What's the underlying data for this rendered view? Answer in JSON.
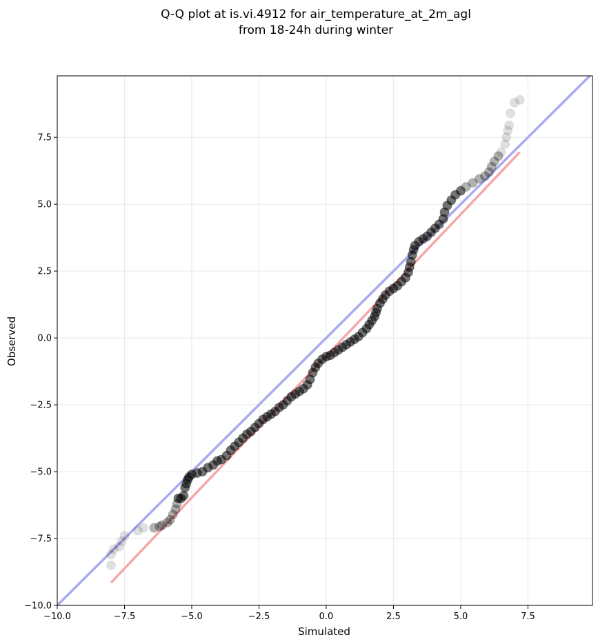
{
  "chart_data": {
    "type": "scatter",
    "title_lines": [
      "Q-Q plot at is.vi.4912 for air_temperature_at_2m_agl",
      "from 18-24h during winter"
    ],
    "xlabel": "Simulated",
    "ylabel": "Observed",
    "xlim": [
      -10.0,
      9.9
    ],
    "ylim": [
      -10.0,
      9.8
    ],
    "x_ticks": [
      -10.0,
      -7.5,
      -5.0,
      -2.5,
      0.0,
      2.5,
      5.0,
      7.5
    ],
    "y_ticks": [
      -10.0,
      -7.5,
      -5.0,
      -2.5,
      0.0,
      2.5,
      5.0,
      7.5
    ],
    "x_tick_labels": [
      "−10.0",
      "−7.5",
      "−5.0",
      "−2.5",
      "0.0",
      "2.5",
      "5.0",
      "7.5"
    ],
    "y_tick_labels": [
      "−10.0",
      "−7.5",
      "−5.0",
      "−2.5",
      "0.0",
      "2.5",
      "5.0",
      "7.5"
    ],
    "grid": true,
    "reference_line": {
      "x": [
        -10.0,
        9.9
      ],
      "y": [
        -10.0,
        9.9
      ],
      "color": "#aaaaf0"
    },
    "fit_line": {
      "x": [
        -8.0,
        7.2
      ],
      "y": [
        -9.15,
        6.95
      ],
      "color": "#f4a7a7"
    },
    "series": [
      {
        "point_color": "#000000",
        "points": [
          [
            -8.0,
            -8.5
          ],
          [
            -8.0,
            -8.1
          ],
          [
            -7.9,
            -7.9
          ],
          [
            -7.7,
            -7.8
          ],
          [
            -7.6,
            -7.6
          ],
          [
            -7.5,
            -7.4
          ],
          [
            -7.0,
            -7.2
          ],
          [
            -6.8,
            -7.1
          ],
          [
            -6.4,
            -7.1
          ],
          [
            -6.2,
            -7.05
          ],
          [
            -6.1,
            -7.0
          ],
          [
            -5.9,
            -6.9
          ],
          [
            -5.8,
            -6.8
          ],
          [
            -5.7,
            -6.6
          ],
          [
            -5.6,
            -6.4
          ],
          [
            -5.55,
            -6.2
          ],
          [
            -5.5,
            -6.0
          ],
          [
            -5.4,
            -6.0
          ],
          [
            -5.3,
            -5.9
          ],
          [
            -5.25,
            -5.6
          ],
          [
            -5.2,
            -5.45
          ],
          [
            -5.15,
            -5.3
          ],
          [
            -5.1,
            -5.2
          ],
          [
            -5.0,
            -5.1
          ],
          [
            -4.8,
            -5.05
          ],
          [
            -4.6,
            -5.0
          ],
          [
            -4.4,
            -4.85
          ],
          [
            -4.2,
            -4.75
          ],
          [
            -4.05,
            -4.6
          ],
          [
            -3.9,
            -4.55
          ],
          [
            -3.7,
            -4.4
          ],
          [
            -3.55,
            -4.2
          ],
          [
            -3.4,
            -4.05
          ],
          [
            -3.25,
            -3.9
          ],
          [
            -3.1,
            -3.75
          ],
          [
            -2.95,
            -3.6
          ],
          [
            -2.8,
            -3.5
          ],
          [
            -2.65,
            -3.35
          ],
          [
            -2.5,
            -3.2
          ],
          [
            -2.35,
            -3.05
          ],
          [
            -2.2,
            -2.95
          ],
          [
            -2.05,
            -2.85
          ],
          [
            -1.9,
            -2.75
          ],
          [
            -1.75,
            -2.6
          ],
          [
            -1.6,
            -2.5
          ],
          [
            -1.45,
            -2.35
          ],
          [
            -1.3,
            -2.2
          ],
          [
            -1.15,
            -2.1
          ],
          [
            -1.0,
            -2.0
          ],
          [
            -0.85,
            -1.9
          ],
          [
            -0.7,
            -1.75
          ],
          [
            -0.6,
            -1.55
          ],
          [
            -0.5,
            -1.3
          ],
          [
            -0.4,
            -1.1
          ],
          [
            -0.3,
            -0.95
          ],
          [
            -0.15,
            -0.8
          ],
          [
            0.0,
            -0.7
          ],
          [
            0.15,
            -0.65
          ],
          [
            0.3,
            -0.55
          ],
          [
            0.45,
            -0.45
          ],
          [
            0.6,
            -0.35
          ],
          [
            0.75,
            -0.25
          ],
          [
            0.9,
            -0.15
          ],
          [
            1.05,
            -0.05
          ],
          [
            1.2,
            0.05
          ],
          [
            1.35,
            0.2
          ],
          [
            1.5,
            0.35
          ],
          [
            1.6,
            0.5
          ],
          [
            1.7,
            0.65
          ],
          [
            1.8,
            0.8
          ],
          [
            1.85,
            0.95
          ],
          [
            1.9,
            1.1
          ],
          [
            2.0,
            1.3
          ],
          [
            2.1,
            1.45
          ],
          [
            2.2,
            1.6
          ],
          [
            2.35,
            1.75
          ],
          [
            2.5,
            1.85
          ],
          [
            2.65,
            1.95
          ],
          [
            2.8,
            2.1
          ],
          [
            2.95,
            2.25
          ],
          [
            3.05,
            2.45
          ],
          [
            3.1,
            2.65
          ],
          [
            3.15,
            2.85
          ],
          [
            3.2,
            3.1
          ],
          [
            3.25,
            3.3
          ],
          [
            3.3,
            3.45
          ],
          [
            3.45,
            3.6
          ],
          [
            3.6,
            3.7
          ],
          [
            3.75,
            3.8
          ],
          [
            3.9,
            3.95
          ],
          [
            4.05,
            4.1
          ],
          [
            4.2,
            4.25
          ],
          [
            4.35,
            4.45
          ],
          [
            4.4,
            4.7
          ],
          [
            4.5,
            4.95
          ],
          [
            4.65,
            5.15
          ],
          [
            4.8,
            5.35
          ],
          [
            5.0,
            5.5
          ],
          [
            5.2,
            5.65
          ],
          [
            5.45,
            5.8
          ],
          [
            5.7,
            5.95
          ],
          [
            5.9,
            6.05
          ],
          [
            6.05,
            6.2
          ],
          [
            6.15,
            6.4
          ],
          [
            6.25,
            6.6
          ],
          [
            6.4,
            6.8
          ],
          [
            6.5,
            6.95
          ],
          [
            6.65,
            7.25
          ],
          [
            6.7,
            7.5
          ],
          [
            6.75,
            7.75
          ],
          [
            6.8,
            7.95
          ],
          [
            6.85,
            8.4
          ],
          [
            7.0,
            8.8
          ],
          [
            7.2,
            8.9
          ]
        ]
      }
    ]
  }
}
